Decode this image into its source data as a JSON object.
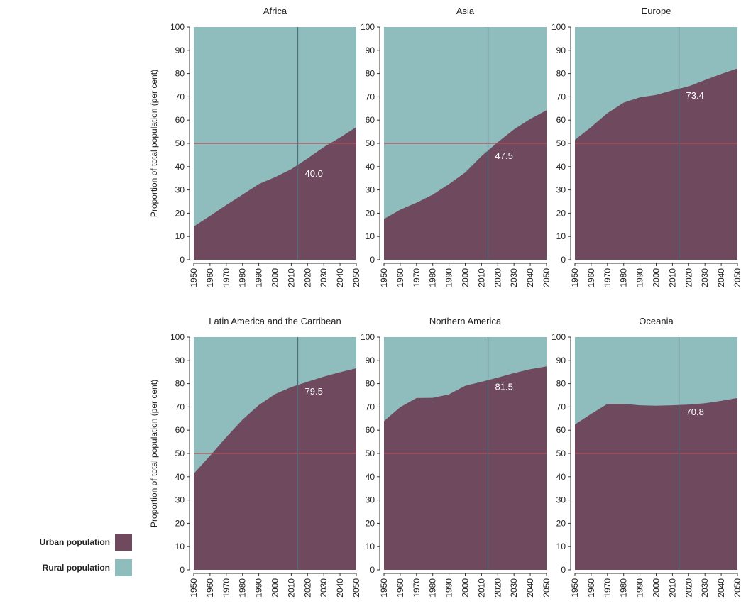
{
  "colors": {
    "urban": "#6f4a5f",
    "rural": "#8fbcbc",
    "threshold_line": "#b0505a",
    "year_marker_line": "#4d6f7a"
  },
  "legend": {
    "position": "bottom-left",
    "items": [
      {
        "label": "Urban population",
        "color": "#6f4a5f"
      },
      {
        "label": "Rural population",
        "color": "#8fbcbc"
      }
    ]
  },
  "chart_data": [
    {
      "type": "area",
      "title": "Africa",
      "ylabel": "Proportion of total population (per cent)",
      "xlabel": "",
      "x": [
        1950,
        1960,
        1970,
        1980,
        1990,
        2000,
        2010,
        2020,
        2030,
        2040,
        2050
      ],
      "series": [
        {
          "name": "Urban population",
          "values": [
            14.3,
            18.8,
            23.5,
            28.0,
            32.5,
            35.5,
            38.9,
            43.5,
            48.4,
            52.5,
            57.0
          ]
        },
        {
          "name": "Rural population",
          "values": [
            85.7,
            81.2,
            76.5,
            72.0,
            67.5,
            64.5,
            61.1,
            56.5,
            51.6,
            47.5,
            43.0
          ]
        }
      ],
      "ylim": [
        0,
        100
      ],
      "xlim": [
        1950,
        2050
      ],
      "yticks": [
        0,
        10,
        20,
        30,
        40,
        50,
        60,
        70,
        80,
        90,
        100
      ],
      "xticks": [
        1950,
        1960,
        1970,
        1980,
        1990,
        2000,
        2010,
        2020,
        2030,
        2040,
        2050
      ],
      "reference_line_y": 50,
      "marker_year": 2014,
      "annotation": {
        "text": "40.0",
        "x": 2014,
        "y": 40.0
      }
    },
    {
      "type": "area",
      "title": "Asia",
      "ylabel": "",
      "xlabel": "",
      "x": [
        1950,
        1960,
        1970,
        1980,
        1990,
        2000,
        2010,
        2020,
        2030,
        2040,
        2050
      ],
      "series": [
        {
          "name": "Urban population",
          "values": [
            17.5,
            21.5,
            24.5,
            28.0,
            32.5,
            37.5,
            44.5,
            50.5,
            56.0,
            60.5,
            64.2
          ]
        },
        {
          "name": "Rural population",
          "values": [
            82.5,
            78.5,
            75.5,
            72.0,
            67.5,
            62.5,
            55.5,
            49.5,
            44.0,
            39.5,
            35.8
          ]
        }
      ],
      "ylim": [
        0,
        100
      ],
      "xlim": [
        1950,
        2050
      ],
      "yticks": [
        0,
        10,
        20,
        30,
        40,
        50,
        60,
        70,
        80,
        90,
        100
      ],
      "xticks": [
        1950,
        1960,
        1970,
        1980,
        1990,
        2000,
        2010,
        2020,
        2030,
        2040,
        2050
      ],
      "reference_line_y": 50,
      "marker_year": 2014,
      "annotation": {
        "text": "47.5",
        "x": 2014,
        "y": 47.5
      }
    },
    {
      "type": "area",
      "title": "Europe",
      "ylabel": "",
      "xlabel": "",
      "x": [
        1950,
        1960,
        1970,
        1980,
        1990,
        2000,
        2010,
        2020,
        2030,
        2040,
        2050
      ],
      "series": [
        {
          "name": "Urban population",
          "values": [
            51.5,
            57.0,
            63.0,
            67.5,
            69.8,
            70.8,
            72.8,
            74.5,
            77.2,
            79.8,
            82.2
          ]
        },
        {
          "name": "Rural population",
          "values": [
            48.5,
            43.0,
            37.0,
            32.5,
            30.2,
            29.2,
            27.2,
            25.5,
            22.8,
            20.2,
            17.8
          ]
        }
      ],
      "ylim": [
        0,
        100
      ],
      "xlim": [
        1950,
        2050
      ],
      "yticks": [
        0,
        10,
        20,
        30,
        40,
        50,
        60,
        70,
        80,
        90,
        100
      ],
      "xticks": [
        1950,
        1960,
        1970,
        1980,
        1990,
        2000,
        2010,
        2020,
        2030,
        2040,
        2050
      ],
      "reference_line_y": 50,
      "marker_year": 2014,
      "annotation": {
        "text": "73.4",
        "x": 2014,
        "y": 73.4
      }
    },
    {
      "type": "area",
      "title": "Latin America and the Carribean",
      "ylabel": "Proportion of total population (per cent)",
      "xlabel": "",
      "x": [
        1950,
        1960,
        1970,
        1980,
        1990,
        2000,
        2010,
        2020,
        2030,
        2040,
        2050
      ],
      "series": [
        {
          "name": "Urban population",
          "values": [
            41.3,
            49.0,
            57.0,
            64.5,
            70.8,
            75.5,
            78.5,
            80.8,
            83.0,
            84.9,
            86.6
          ]
        },
        {
          "name": "Rural population",
          "values": [
            58.7,
            51.0,
            43.0,
            35.5,
            29.2,
            24.5,
            21.5,
            19.2,
            17.0,
            15.1,
            13.4
          ]
        }
      ],
      "ylim": [
        0,
        100
      ],
      "xlim": [
        1950,
        2050
      ],
      "yticks": [
        0,
        10,
        20,
        30,
        40,
        50,
        60,
        70,
        80,
        90,
        100
      ],
      "xticks": [
        1950,
        1960,
        1970,
        1980,
        1990,
        2000,
        2010,
        2020,
        2030,
        2040,
        2050
      ],
      "reference_line_y": 50,
      "marker_year": 2014,
      "annotation": {
        "text": "79.5",
        "x": 2014,
        "y": 79.5
      }
    },
    {
      "type": "area",
      "title": "Northern America",
      "ylabel": "",
      "xlabel": "",
      "x": [
        1950,
        1960,
        1970,
        1980,
        1990,
        2000,
        2010,
        2020,
        2030,
        2040,
        2050
      ],
      "series": [
        {
          "name": "Urban population",
          "values": [
            63.9,
            69.9,
            73.8,
            73.9,
            75.4,
            79.1,
            80.8,
            82.6,
            84.5,
            86.2,
            87.4
          ]
        },
        {
          "name": "Rural population",
          "values": [
            36.1,
            30.1,
            26.2,
            26.1,
            24.6,
            20.9,
            19.2,
            17.4,
            15.5,
            13.8,
            12.6
          ]
        }
      ],
      "ylim": [
        0,
        100
      ],
      "xlim": [
        1950,
        2050
      ],
      "yticks": [
        0,
        10,
        20,
        30,
        40,
        50,
        60,
        70,
        80,
        90,
        100
      ],
      "xticks": [
        1950,
        1960,
        1970,
        1980,
        1990,
        2000,
        2010,
        2020,
        2030,
        2040,
        2050
      ],
      "reference_line_y": 50,
      "marker_year": 2014,
      "annotation": {
        "text": "81.5",
        "x": 2014,
        "y": 81.5
      }
    },
    {
      "type": "area",
      "title": "Oceania",
      "ylabel": "",
      "xlabel": "",
      "x": [
        1950,
        1960,
        1970,
        1980,
        1990,
        2000,
        2010,
        2020,
        2030,
        2040,
        2050
      ],
      "series": [
        {
          "name": "Urban population",
          "values": [
            62.4,
            67.0,
            71.3,
            71.3,
            70.7,
            70.5,
            70.7,
            71.0,
            71.6,
            72.6,
            73.8
          ]
        },
        {
          "name": "Rural population",
          "values": [
            37.6,
            33.0,
            28.7,
            28.7,
            29.3,
            29.5,
            29.3,
            29.0,
            28.4,
            27.4,
            26.2
          ]
        }
      ],
      "ylim": [
        0,
        100
      ],
      "xlim": [
        1950,
        2050
      ],
      "yticks": [
        0,
        10,
        20,
        30,
        40,
        50,
        60,
        70,
        80,
        90,
        100
      ],
      "xticks": [
        1950,
        1960,
        1970,
        1980,
        1990,
        2000,
        2010,
        2020,
        2030,
        2040,
        2050
      ],
      "reference_line_y": 50,
      "marker_year": 2014,
      "annotation": {
        "text": "70.8",
        "x": 2014,
        "y": 70.8
      }
    }
  ]
}
